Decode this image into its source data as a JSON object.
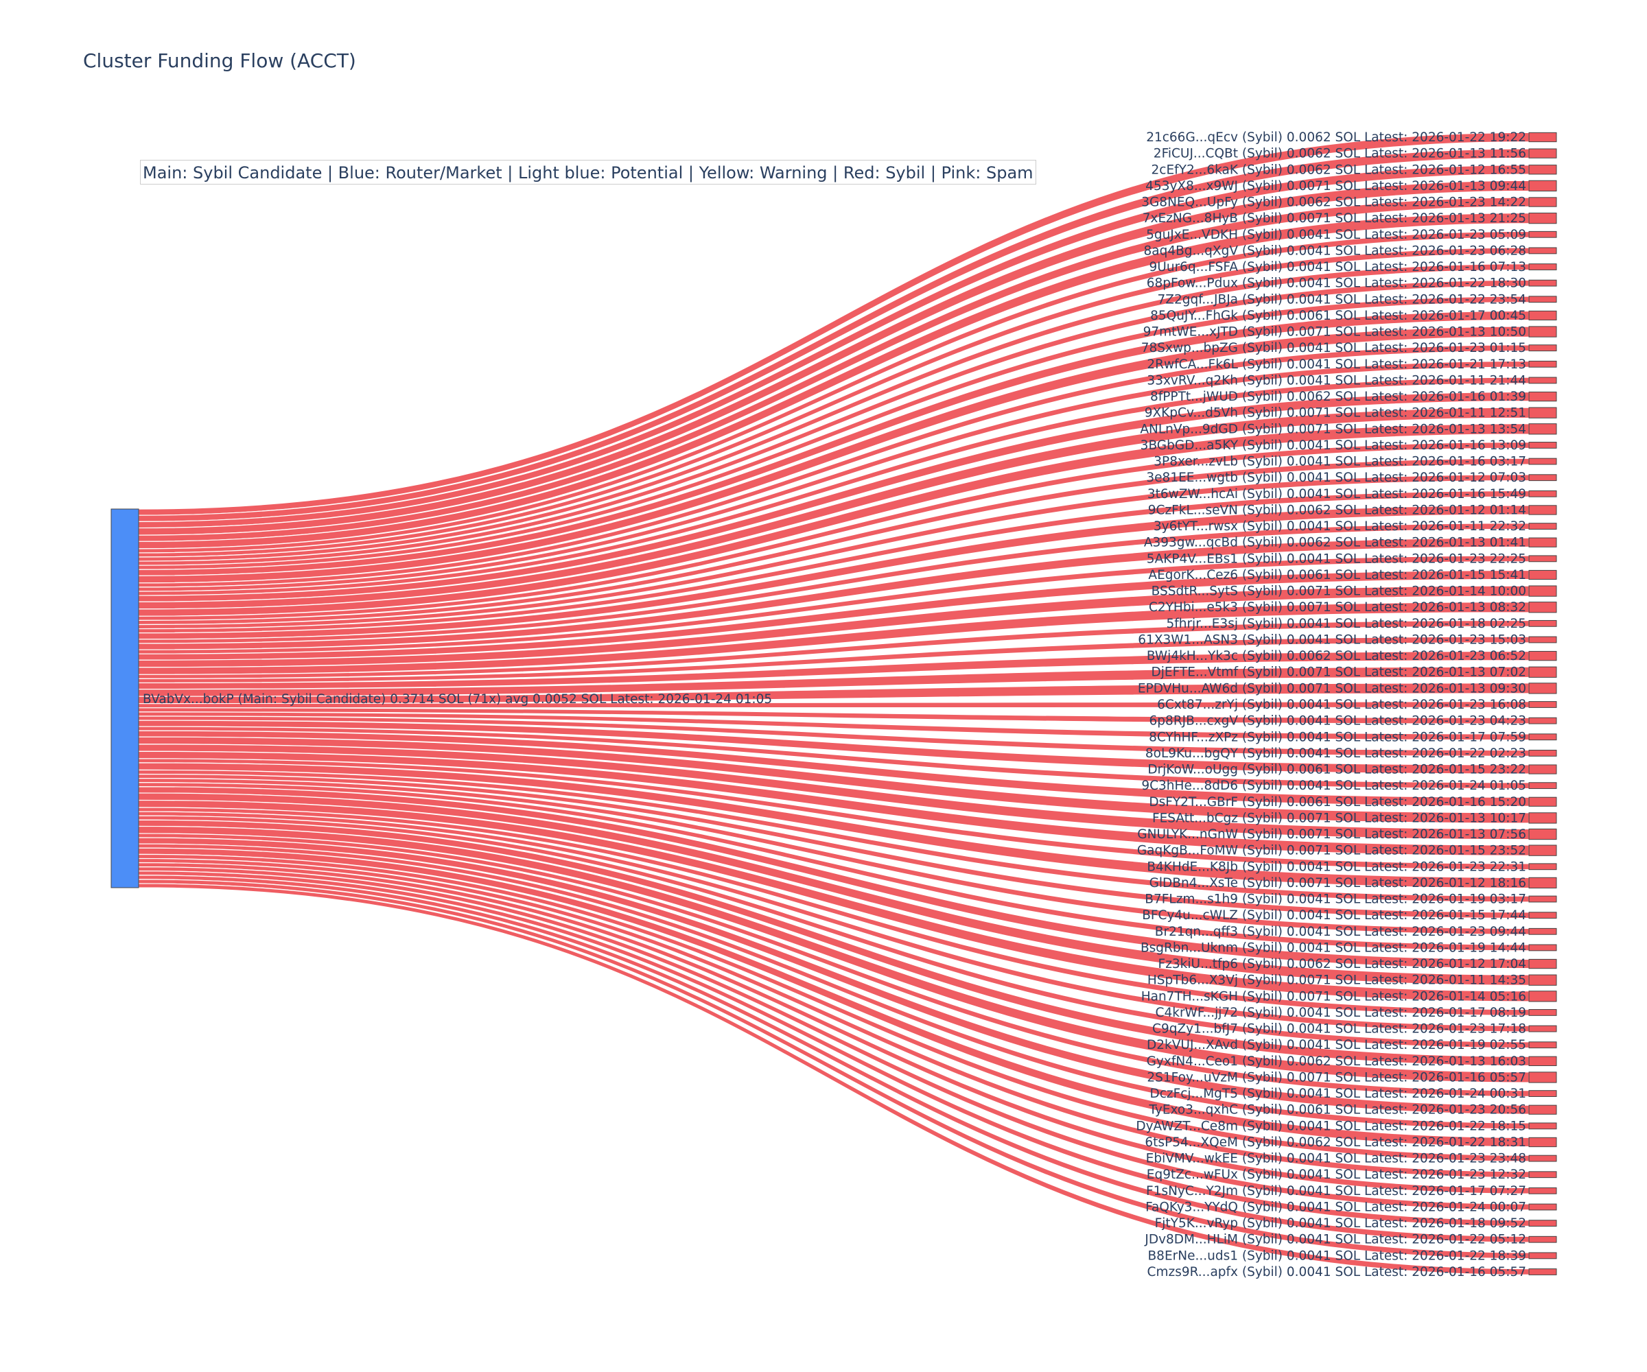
{
  "title": "Cluster Funding Flow (ACCT)",
  "legend_note": "Main: Sybil Candidate  |  Blue: Router/Market | Light blue: Potential | Yellow: Warning | Red: Sybil | Pink: Spam",
  "colors": {
    "source_node": "#4c8ef7",
    "link": "#ef5a5f",
    "target_node": "#ef5a5f",
    "text": "#2a3f5f"
  },
  "chart_data": {
    "type": "sankey",
    "title": "Cluster Funding Flow (ACCT)",
    "source": {
      "label": "BVabVx...bokP (Main: Sybil Candidate) 0.3714 SOL (71x) avg 0.0052 SOL Latest: 2026-01-24 01:05",
      "value": 0.3714,
      "count": 71
    },
    "targets": [
      {
        "label": "21c66G...qEcv (Sybil) 0.0062 SOL Latest: 2026-01-22 19:22",
        "value": 0.0062
      },
      {
        "label": "2FiCUJ...CQBt (Sybil) 0.0062 SOL Latest: 2026-01-13 11:56",
        "value": 0.0062
      },
      {
        "label": "2cEfY2...6kaK (Sybil) 0.0062 SOL Latest: 2026-01-12 16:55",
        "value": 0.0062
      },
      {
        "label": "453yX8...x9WJ (Sybil) 0.0071 SOL Latest: 2026-01-13 09:44",
        "value": 0.0071
      },
      {
        "label": "3G8NEQ...UpFy (Sybil) 0.0062 SOL Latest: 2026-01-23 14:22",
        "value": 0.0062
      },
      {
        "label": "7xEzNG...8HyB (Sybil) 0.0071 SOL Latest: 2026-01-13 21:25",
        "value": 0.0071
      },
      {
        "label": "5guJxE...VDKH (Sybil) 0.0041 SOL Latest: 2026-01-23 05:09",
        "value": 0.0041
      },
      {
        "label": "8aq4Bg...qXgV (Sybil) 0.0041 SOL Latest: 2026-01-23 06:28",
        "value": 0.0041
      },
      {
        "label": "9Uur6q...FSFA (Sybil) 0.0041 SOL Latest: 2026-01-16 07:13",
        "value": 0.0041
      },
      {
        "label": "68pFow...Pdux (Sybil) 0.0041 SOL Latest: 2026-01-22 18:30",
        "value": 0.0041
      },
      {
        "label": "7Z2gqf...JBJa (Sybil) 0.0041 SOL Latest: 2026-01-22 23:54",
        "value": 0.0041
      },
      {
        "label": "85QuJY...FhGk (Sybil) 0.0061 SOL Latest: 2026-01-17 00:45",
        "value": 0.0061
      },
      {
        "label": "97mtWE...xJTD (Sybil) 0.0071 SOL Latest: 2026-01-13 10:50",
        "value": 0.0071
      },
      {
        "label": "78Sxwp...bpZG (Sybil) 0.0041 SOL Latest: 2026-01-23 01:15",
        "value": 0.0041
      },
      {
        "label": "2RwfCA...Fk6L (Sybil) 0.0041 SOL Latest: 2026-01-21 17:13",
        "value": 0.0041
      },
      {
        "label": "33xvRV...q2Kh (Sybil) 0.0041 SOL Latest: 2026-01-11 21:44",
        "value": 0.0041
      },
      {
        "label": "8fPPTt...jWUD (Sybil) 0.0062 SOL Latest: 2026-01-16 01:39",
        "value": 0.0062
      },
      {
        "label": "9XKpCv...d5Vh (Sybil) 0.0071 SOL Latest: 2026-01-11 12:51",
        "value": 0.0071
      },
      {
        "label": "ANLnVp...9dGD (Sybil) 0.0071 SOL Latest: 2026-01-13 13:54",
        "value": 0.0071
      },
      {
        "label": "3BGbGD...a5KY (Sybil) 0.0041 SOL Latest: 2026-01-16 13:09",
        "value": 0.0041
      },
      {
        "label": "3P8xer...zvLb (Sybil) 0.0041 SOL Latest: 2026-01-16 03:17",
        "value": 0.0041
      },
      {
        "label": "3e81EE...wgtb (Sybil) 0.0041 SOL Latest: 2026-01-12 07:03",
        "value": 0.0041
      },
      {
        "label": "3t6wZW...hcAi (Sybil) 0.0041 SOL Latest: 2026-01-16 15:49",
        "value": 0.0041
      },
      {
        "label": "9CzFkL...seVN (Sybil) 0.0062 SOL Latest: 2026-01-12 01:14",
        "value": 0.0062
      },
      {
        "label": "3y6tYT...rwsx (Sybil) 0.0041 SOL Latest: 2026-01-11 22:32",
        "value": 0.0041
      },
      {
        "label": "A393gw...qcBd (Sybil) 0.0062 SOL Latest: 2026-01-13 01:41",
        "value": 0.0062
      },
      {
        "label": "5AKP4V...EBs1 (Sybil) 0.0041 SOL Latest: 2026-01-23 22:25",
        "value": 0.0041
      },
      {
        "label": "AEgorK...Cez6 (Sybil) 0.0061 SOL Latest: 2026-01-15 15:41",
        "value": 0.0061
      },
      {
        "label": "BSSdtR...SytS (Sybil) 0.0071 SOL Latest: 2026-01-14 10:00",
        "value": 0.0071
      },
      {
        "label": "C2YHbi...e5k3 (Sybil) 0.0071 SOL Latest: 2026-01-13 08:32",
        "value": 0.0071
      },
      {
        "label": "5fhrjr...E3sj (Sybil) 0.0041 SOL Latest: 2026-01-18 02:25",
        "value": 0.0041
      },
      {
        "label": "61X3W1...ASN3 (Sybil) 0.0041 SOL Latest: 2026-01-23 15:03",
        "value": 0.0041
      },
      {
        "label": "BWj4kH...Yk3c (Sybil) 0.0062 SOL Latest: 2026-01-23 06:52",
        "value": 0.0062
      },
      {
        "label": "DjEFTE...Vtmf (Sybil) 0.0071 SOL Latest: 2026-01-13 07:02",
        "value": 0.0071
      },
      {
        "label": "EPDVHu...AW6d (Sybil) 0.0071 SOL Latest: 2026-01-13 09:30",
        "value": 0.0071
      },
      {
        "label": "6Cxt87...zrYj (Sybil) 0.0041 SOL Latest: 2026-01-23 16:08",
        "value": 0.0041
      },
      {
        "label": "6p8RJB...cxgV (Sybil) 0.0041 SOL Latest: 2026-01-23 04:23",
        "value": 0.0041
      },
      {
        "label": "8CYhHF...zXPz (Sybil) 0.0041 SOL Latest: 2026-01-17 07:59",
        "value": 0.0041
      },
      {
        "label": "8oL9Ku...bgQY (Sybil) 0.0041 SOL Latest: 2026-01-22 02:23",
        "value": 0.0041
      },
      {
        "label": "DrjKoW...oUgg (Sybil) 0.0061 SOL Latest: 2026-01-15 23:22",
        "value": 0.0061
      },
      {
        "label": "9C3hHe...8dD6 (Sybil) 0.0041 SOL Latest: 2026-01-24 01:05",
        "value": 0.0041
      },
      {
        "label": "DsFY2T...GBrF (Sybil) 0.0061 SOL Latest: 2026-01-16 15:20",
        "value": 0.0061
      },
      {
        "label": "FESAtt...bCgz (Sybil) 0.0071 SOL Latest: 2026-01-13 10:17",
        "value": 0.0071
      },
      {
        "label": "GNULYK...nGnW (Sybil) 0.0071 SOL Latest: 2026-01-13 07:56",
        "value": 0.0071
      },
      {
        "label": "GaqKgB...FoMW (Sybil) 0.0071 SOL Latest: 2026-01-15 23:52",
        "value": 0.0071
      },
      {
        "label": "B4KHdE...K8Jb (Sybil) 0.0041 SOL Latest: 2026-01-23 22:31",
        "value": 0.0041
      },
      {
        "label": "GlDBn4...XsTe (Sybil) 0.0071 SOL Latest: 2026-01-12 18:16",
        "value": 0.0071
      },
      {
        "label": "B7FLzm...s1h9 (Sybil) 0.0041 SOL Latest: 2026-01-19 03:17",
        "value": 0.0041
      },
      {
        "label": "BFCy4u...cWLZ (Sybil) 0.0041 SOL Latest: 2026-01-15 17:44",
        "value": 0.0041
      },
      {
        "label": "Br21qn...qff3 (Sybil) 0.0041 SOL Latest: 2026-01-23 09:44",
        "value": 0.0041
      },
      {
        "label": "BsgRbn...Uknm (Sybil) 0.0041 SOL Latest: 2026-01-19 14:44",
        "value": 0.0041
      },
      {
        "label": "Fz3kiU...tfp6 (Sybil) 0.0062 SOL Latest: 2026-01-12 17:04",
        "value": 0.0062
      },
      {
        "label": "HSpTb6...X3Vj (Sybil) 0.0071 SOL Latest: 2026-01-11 14:35",
        "value": 0.0071
      },
      {
        "label": "Han7TH...sKGH (Sybil) 0.0071 SOL Latest: 2026-01-14 05:16",
        "value": 0.0071
      },
      {
        "label": "C4krWF...jj72 (Sybil) 0.0041 SOL Latest: 2026-01-17 08:19",
        "value": 0.0041
      },
      {
        "label": "C9qZy1...bfJ7 (Sybil) 0.0041 SOL Latest: 2026-01-23 17:18",
        "value": 0.0041
      },
      {
        "label": "D2kVUJ...XAvd (Sybil) 0.0041 SOL Latest: 2026-01-19 02:55",
        "value": 0.0041
      },
      {
        "label": "GyxfN4...Ceo1 (Sybil) 0.0062 SOL Latest: 2026-01-13 16:03",
        "value": 0.0062
      },
      {
        "label": "2S1Foy...uVzM (Sybil) 0.0071 SOL Latest: 2026-01-16 05:57",
        "value": 0.0071
      },
      {
        "label": "DczFcj...MgT5 (Sybil) 0.0041 SOL Latest: 2026-01-24 00:31",
        "value": 0.0041
      },
      {
        "label": "TyExo3...qxhC (Sybil) 0.0061 SOL Latest: 2026-01-23 20:56",
        "value": 0.0061
      },
      {
        "label": "DyAWZT...Ce8m (Sybil) 0.0041 SOL Latest: 2026-01-22 18:15",
        "value": 0.0041
      },
      {
        "label": "6tsP54...XQeM (Sybil) 0.0062 SOL Latest: 2026-01-22 18:31",
        "value": 0.0062
      },
      {
        "label": "EbiVMV...wkEE (Sybil) 0.0041 SOL Latest: 2026-01-23 23:48",
        "value": 0.0041
      },
      {
        "label": "Eq9tZc...wFUx (Sybil) 0.0041 SOL Latest: 2026-01-23 12:32",
        "value": 0.0041
      },
      {
        "label": "F1sNyC...Y2Jm (Sybil) 0.0041 SOL Latest: 2026-01-17 07:27",
        "value": 0.0041
      },
      {
        "label": "FaQKy3...YYdQ (Sybil) 0.0041 SOL Latest: 2026-01-24 00:07",
        "value": 0.0041
      },
      {
        "label": "FjtY5K...vRyp (Sybil) 0.0041 SOL Latest: 2026-01-18 09:52",
        "value": 0.0041
      },
      {
        "label": "JDv8DM...HLiM (Sybil) 0.0041 SOL Latest: 2026-01-22 05:12",
        "value": 0.0041
      },
      {
        "label": "B8ErNe...uds1 (Sybil) 0.0041 SOL Latest: 2026-01-22 18:39",
        "value": 0.0041
      },
      {
        "label": "Cmzs9R...apfx (Sybil) 0.0041 SOL Latest: 2026-01-16 05:57",
        "value": 0.0041
      }
    ]
  }
}
